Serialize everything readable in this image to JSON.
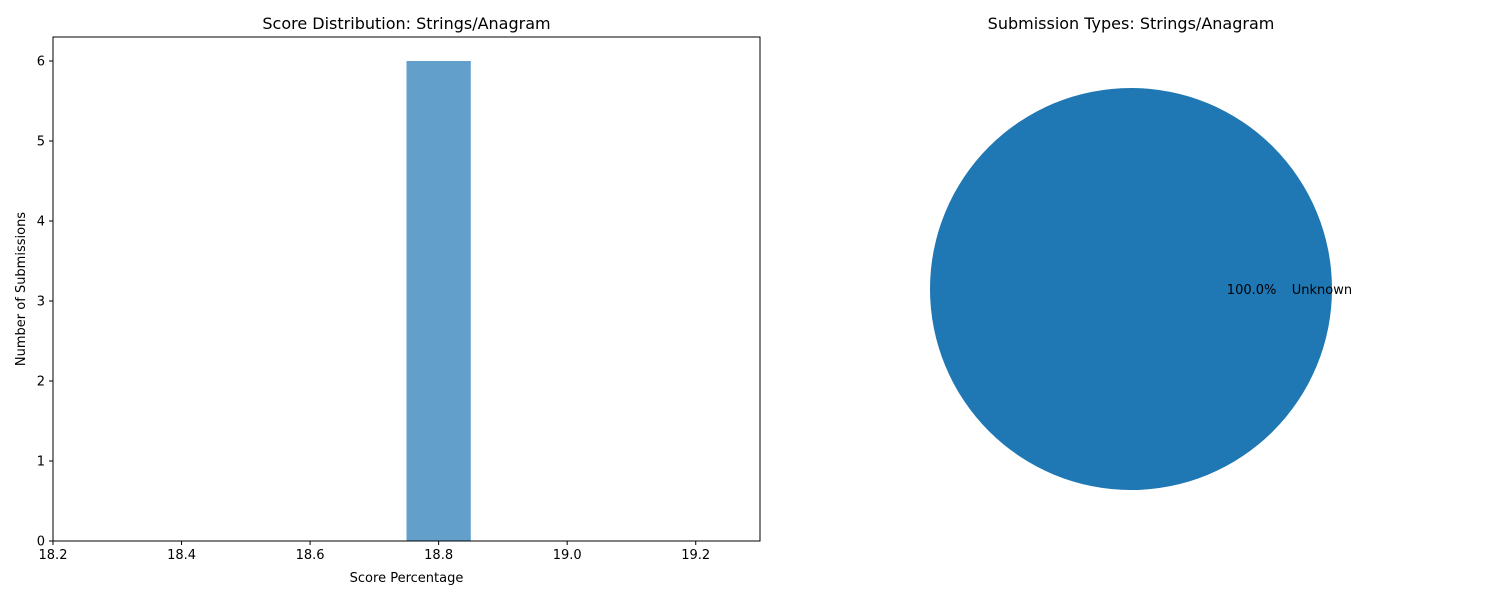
{
  "chart_data": [
    {
      "type": "bar",
      "title": "Score Distribution: Strings/Anagram",
      "xlabel": "Score Percentage",
      "ylabel": "Number of Submissions",
      "xlim": [
        18.2,
        19.3
      ],
      "ylim": [
        0,
        6.3
      ],
      "xticks": [
        18.2,
        18.4,
        18.6,
        18.8,
        19.0,
        19.2
      ],
      "xtick_labels": [
        "18.2",
        "18.4",
        "18.6",
        "18.8",
        "19.0",
        "19.2"
      ],
      "yticks": [
        0,
        1,
        2,
        3,
        4,
        5,
        6
      ],
      "ytick_labels": [
        "0",
        "1",
        "2",
        "3",
        "4",
        "5",
        "6"
      ],
      "bins": [
        {
          "x_start": 18.75,
          "x_end": 18.85,
          "count": 6
        }
      ],
      "bar_color": "#629fca",
      "grid": false
    },
    {
      "type": "pie",
      "title": "Submission Types: Strings/Anagram",
      "slices": [
        {
          "label": "Unknown",
          "value": 100.0,
          "pct_label": "100.0%",
          "color": "#1f77b4"
        }
      ]
    }
  ]
}
